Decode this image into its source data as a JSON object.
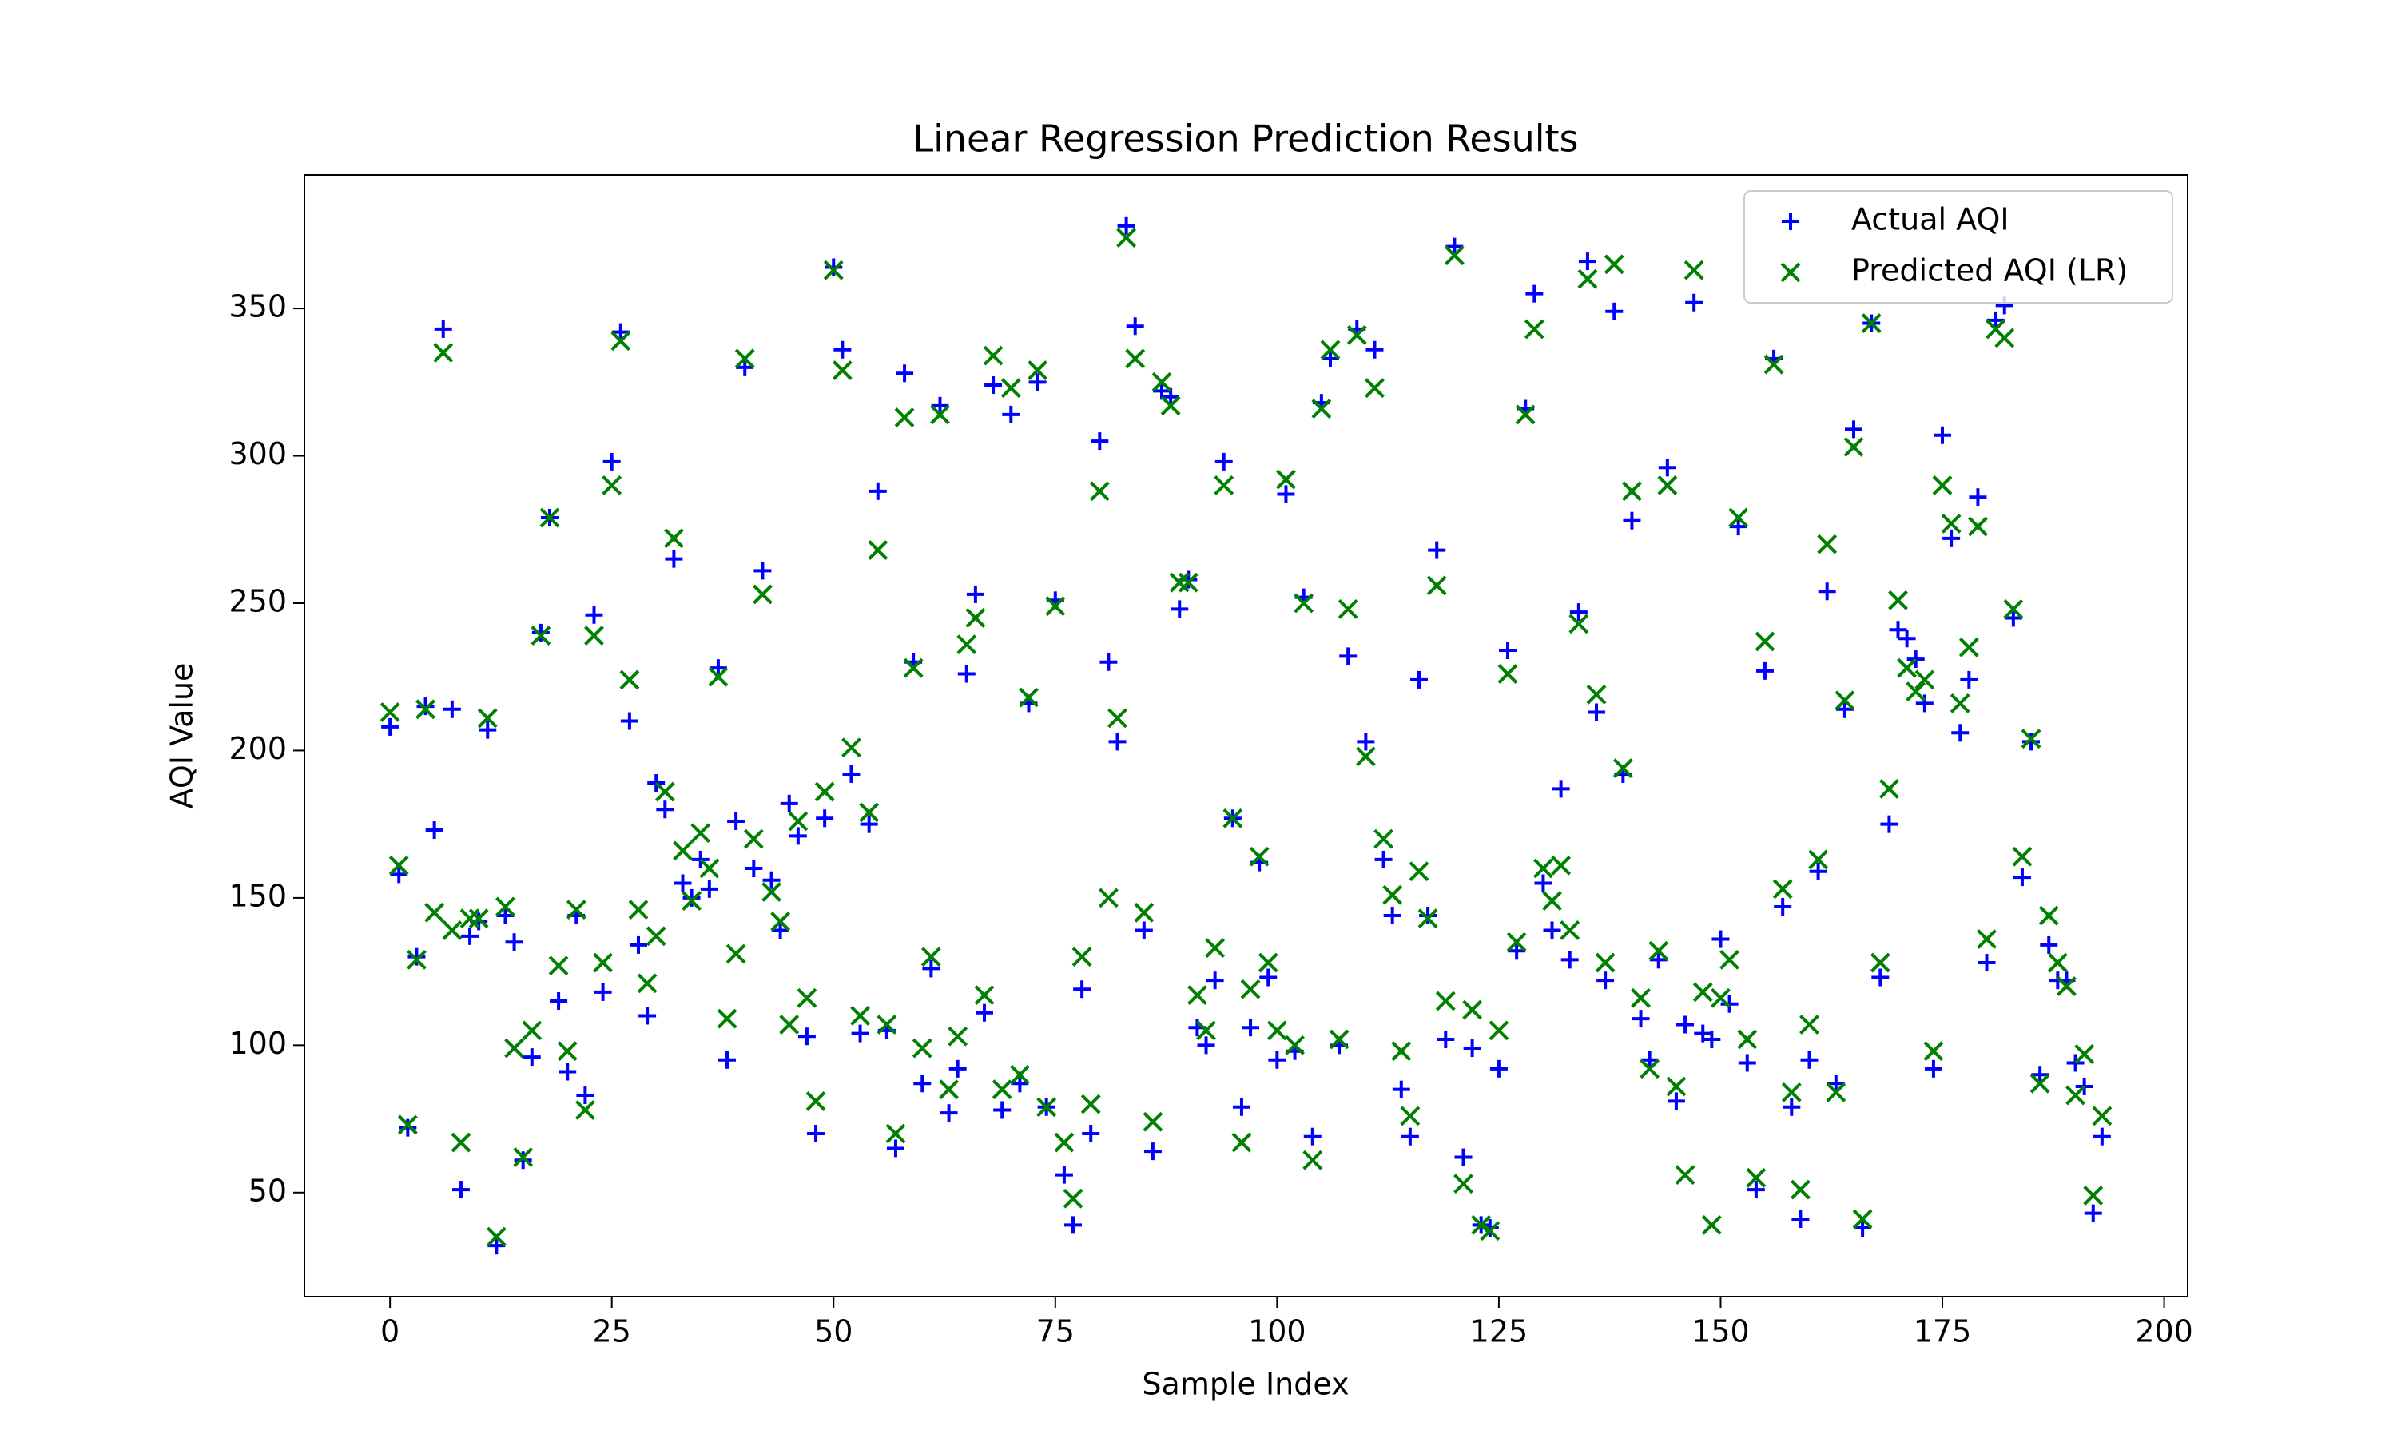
{
  "chart_data": {
    "type": "scatter",
    "title": "Linear Regression Prediction Results",
    "xlabel": "Sample Index",
    "ylabel": "AQI Value",
    "x": [
      0,
      1,
      2,
      3,
      4,
      5,
      6,
      7,
      8,
      9,
      10,
      11,
      12,
      13,
      14,
      15,
      16,
      17,
      18,
      19,
      20,
      21,
      22,
      23,
      24,
      25,
      26,
      27,
      28,
      29,
      30,
      31,
      32,
      33,
      34,
      35,
      36,
      37,
      38,
      39,
      40,
      41,
      42,
      43,
      44,
      45,
      46,
      47,
      48,
      49,
      50,
      51,
      52,
      53,
      54,
      55,
      56,
      57,
      58,
      59,
      60,
      61,
      62,
      63,
      64,
      65,
      66,
      67,
      68,
      69,
      70,
      71,
      72,
      73,
      74,
      75,
      76,
      77,
      78,
      79,
      80,
      81,
      82,
      83,
      84,
      85,
      86,
      87,
      88,
      89,
      90,
      91,
      92,
      93,
      94,
      95,
      96,
      97,
      98,
      99,
      100,
      101,
      102,
      103,
      104,
      105,
      106,
      107,
      108,
      109,
      110,
      111,
      112,
      113,
      114,
      115,
      116,
      117,
      118,
      119,
      120,
      121,
      122,
      123,
      124,
      125,
      126,
      127,
      128,
      129,
      130,
      131,
      132,
      133,
      134,
      135,
      136,
      137,
      138,
      139,
      140,
      141,
      142,
      143,
      144,
      145,
      146,
      147,
      148,
      149,
      150,
      151,
      152,
      153,
      154,
      155,
      156,
      157,
      158,
      159,
      160,
      161,
      162,
      163,
      164,
      165,
      166,
      167,
      168,
      169,
      170,
      171,
      172,
      173,
      174,
      175,
      176,
      177,
      178,
      179,
      180,
      181,
      182,
      183,
      184,
      185,
      186,
      187,
      188,
      189,
      190,
      191,
      192,
      193
    ],
    "series": [
      {
        "name": "Actual AQI",
        "color": "#0000ff",
        "marker": "+",
        "values": [
          208,
          158,
          72,
          130,
          215,
          173,
          343,
          214,
          51,
          137,
          142,
          207,
          32,
          144,
          135,
          61,
          96,
          240,
          279,
          115,
          91,
          144,
          83,
          246,
          118,
          298,
          342,
          210,
          134,
          110,
          189,
          180,
          265,
          155,
          150,
          163,
          153,
          228,
          95,
          176,
          330,
          160,
          261,
          156,
          139,
          182,
          171,
          103,
          70,
          177,
          364,
          336,
          192,
          104,
          175,
          288,
          105,
          65,
          328,
          230,
          87,
          126,
          317,
          77,
          92,
          226,
          253,
          111,
          324,
          78,
          314,
          87,
          216,
          325,
          79,
          251,
          56,
          39,
          119,
          70,
          305,
          230,
          203,
          378,
          344,
          139,
          64,
          322,
          320,
          248,
          258,
          106,
          100,
          122,
          298,
          177,
          79,
          106,
          162,
          123,
          95,
          287,
          98,
          252,
          69,
          318,
          333,
          100,
          232,
          343,
          203,
          336,
          163,
          144,
          85,
          69,
          224,
          144,
          268,
          102,
          371,
          62,
          99,
          39,
          38,
          92,
          234,
          132,
          316,
          355,
          155,
          139,
          187,
          129,
          247,
          366,
          213,
          122,
          349,
          192,
          278,
          109,
          95,
          129,
          296,
          81,
          107,
          352,
          104,
          102,
          136,
          114,
          276,
          94,
          51,
          227,
          333,
          147,
          79,
          41,
          95,
          159,
          254,
          87,
          214,
          309,
          38,
          345,
          123,
          175,
          241,
          238,
          231,
          216,
          92,
          307,
          272,
          206,
          224,
          286,
          128,
          346,
          351,
          245,
          157,
          203,
          90,
          134,
          122,
          122,
          94,
          86,
          43,
          69
        ]
      },
      {
        "name": "Predicted AQI (LR)",
        "color": "#008000",
        "marker": "x",
        "values": [
          213,
          161,
          73,
          129,
          214,
          145,
          335,
          139,
          67,
          143,
          143,
          211,
          35,
          147,
          99,
          62,
          105,
          239,
          279,
          127,
          98,
          146,
          78,
          239,
          128,
          290,
          339,
          224,
          146,
          121,
          137,
          186,
          272,
          166,
          149,
          172,
          160,
          225,
          109,
          131,
          333,
          170,
          253,
          152,
          142,
          107,
          176,
          116,
          81,
          186,
          363,
          329,
          201,
          110,
          179,
          268,
          107,
          70,
          313,
          228,
          99,
          130,
          314,
          85,
          103,
          236,
          245,
          117,
          334,
          85,
          323,
          90,
          218,
          329,
          79,
          249,
          67,
          48,
          130,
          80,
          288,
          150,
          211,
          374,
          333,
          145,
          74,
          325,
          317,
          257,
          257,
          117,
          105,
          133,
          290,
          177,
          67,
          119,
          164,
          128,
          105,
          292,
          100,
          250,
          61,
          316,
          336,
          102,
          248,
          341,
          198,
          323,
          170,
          151,
          98,
          76,
          159,
          143,
          256,
          115,
          368,
          53,
          112,
          39,
          37,
          105,
          226,
          135,
          314,
          343,
          160,
          149,
          161,
          139,
          243,
          360,
          219,
          128,
          365,
          194,
          288,
          116,
          92,
          132,
          290,
          86,
          56,
          363,
          118,
          39,
          116,
          129,
          279,
          102,
          55,
          237,
          331,
          153,
          84,
          51,
          107,
          163,
          270,
          84,
          217,
          303,
          41,
          345,
          128,
          187,
          251,
          228,
          220,
          224,
          98,
          290,
          277,
          216,
          235,
          276,
          136,
          343,
          340,
          248,
          164,
          204,
          87,
          144,
          128,
          120,
          83,
          97,
          49,
          76
        ]
      }
    ],
    "xlim": [
      -9.65,
      202.65
    ],
    "ylim": [
      14.7,
      395.3
    ],
    "xticks": [
      0,
      25,
      50,
      75,
      100,
      125,
      150,
      175,
      200
    ],
    "yticks": [
      50,
      100,
      150,
      200,
      250,
      300,
      350
    ],
    "legend": "upper right",
    "grid": false
  }
}
